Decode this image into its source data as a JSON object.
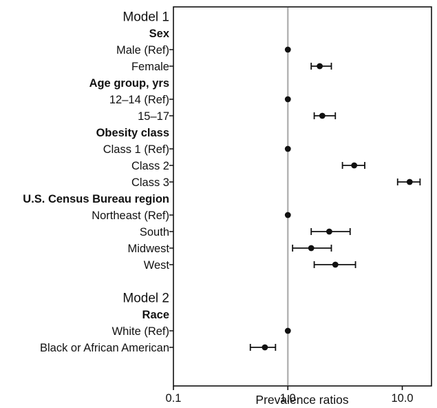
{
  "chart_data": {
    "type": "forest",
    "title": "",
    "xlabel": "Prevalence ratios",
    "x_scale": "log10",
    "xlim": [
      0.1,
      18
    ],
    "x_ticks": [
      {
        "value": 0.1,
        "label": "0.1"
      },
      {
        "value": 1.0,
        "label": "1.0"
      },
      {
        "value": 10.0,
        "label": "10.0"
      }
    ],
    "reference_line": 1.0,
    "grid": false,
    "legend": "none",
    "colors": {
      "point": "#111111",
      "error_bar": "#111111",
      "reference_line": "#b3b3b3",
      "frame": "#111111",
      "text": "#111111"
    },
    "rows": [
      {
        "kind": "title",
        "label": "Model 1"
      },
      {
        "kind": "header",
        "label": "Sex"
      },
      {
        "kind": "data",
        "label": "Male (Ref)",
        "pr": 1.0,
        "lo": 1.0,
        "hi": 1.0,
        "reference": true
      },
      {
        "kind": "data",
        "label": "Female",
        "pr": 1.9,
        "lo": 1.6,
        "hi": 2.4
      },
      {
        "kind": "header",
        "label": "Age group, yrs"
      },
      {
        "kind": "data",
        "label": "12–14 (Ref)",
        "pr": 1.0,
        "lo": 1.0,
        "hi": 1.0,
        "reference": true
      },
      {
        "kind": "data",
        "label": "15–17",
        "pr": 2.0,
        "lo": 1.7,
        "hi": 2.6
      },
      {
        "kind": "header",
        "label": "Obesity class"
      },
      {
        "kind": "data",
        "label": "Class 1 (Ref)",
        "pr": 1.0,
        "lo": 1.0,
        "hi": 1.0,
        "reference": true
      },
      {
        "kind": "data",
        "label": "Class 2",
        "pr": 3.8,
        "lo": 3.0,
        "hi": 4.7
      },
      {
        "kind": "data",
        "label": "Class 3",
        "pr": 11.6,
        "lo": 9.1,
        "hi": 14.3
      },
      {
        "kind": "header",
        "label": "U.S. Census Bureau region"
      },
      {
        "kind": "data",
        "label": "Northeast (Ref)",
        "pr": 1.0,
        "lo": 1.0,
        "hi": 1.0,
        "reference": true
      },
      {
        "kind": "data",
        "label": "South",
        "pr": 2.3,
        "lo": 1.6,
        "hi": 3.5
      },
      {
        "kind": "data",
        "label": "Midwest",
        "pr": 1.6,
        "lo": 1.1,
        "hi": 2.4
      },
      {
        "kind": "data",
        "label": "West",
        "pr": 2.6,
        "lo": 1.7,
        "hi": 3.9
      },
      {
        "kind": "spacer",
        "label": ""
      },
      {
        "kind": "title",
        "label": "Model 2"
      },
      {
        "kind": "header",
        "label": "Race"
      },
      {
        "kind": "data",
        "label": "White (Ref)",
        "pr": 1.0,
        "lo": 1.0,
        "hi": 1.0,
        "reference": true
      },
      {
        "kind": "data",
        "label": "Black or African American",
        "pr": 0.63,
        "lo": 0.47,
        "hi": 0.78
      }
    ]
  }
}
